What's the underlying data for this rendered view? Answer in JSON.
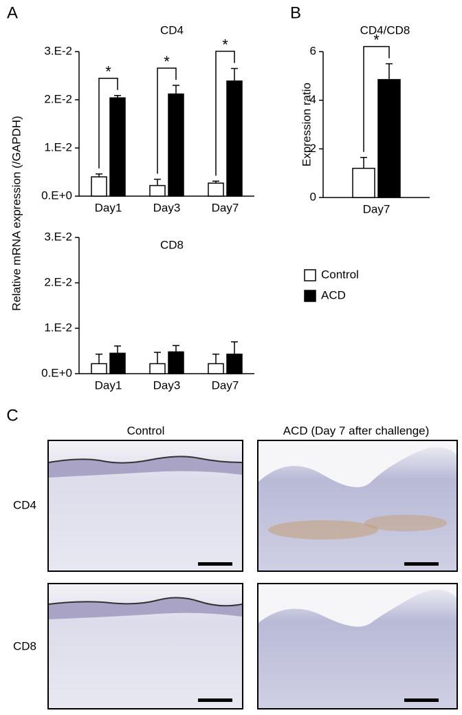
{
  "chart_data": [
    {
      "type": "bar",
      "panel": "A",
      "title": "CD4",
      "ylabel": "Relative mRNA expression  (/GAPDH)",
      "categories": [
        "Day1",
        "Day3",
        "Day7"
      ],
      "series": [
        {
          "name": "Control",
          "color": "#ffffff",
          "values": [
            0.004,
            0.0022,
            0.0027
          ],
          "errors": [
            0.0006,
            0.0013,
            0.0004
          ]
        },
        {
          "name": "ACD",
          "color": "#000000",
          "values": [
            0.0204,
            0.0212,
            0.0239
          ],
          "errors": [
            0.0005,
            0.0018,
            0.0026
          ]
        }
      ],
      "significance": [
        "*",
        "*",
        "*"
      ],
      "ylim": [
        0,
        0.03
      ],
      "yticks": [
        {
          "value": 0,
          "label": "0.E+0"
        },
        {
          "value": 0.01,
          "label": "1.E-2"
        },
        {
          "value": 0.02,
          "label": "2.E-2"
        },
        {
          "value": 0.03,
          "label": "3.E-2"
        }
      ]
    },
    {
      "type": "bar",
      "title": "CD8",
      "categories": [
        "Day1",
        "Day3",
        "Day7"
      ],
      "series": [
        {
          "color": "#ffffff",
          "values": [
            0.0022,
            0.0022,
            0.0022
          ],
          "errors": [
            0.0021,
            0.0025,
            0.0021
          ]
        },
        {
          "color": "#000000",
          "values": [
            0.0045,
            0.0048,
            0.0043
          ],
          "errors": [
            0.0016,
            0.0014,
            0.0027
          ]
        }
      ],
      "ylim": [
        0,
        0.03
      ],
      "yticks": [
        {
          "value": 0,
          "label": "0.E+0"
        },
        {
          "value": 0.01,
          "label": "1.E-2"
        },
        {
          "value": 0.02,
          "label": "2.E-2"
        },
        {
          "value": 0.03,
          "label": "3.E-2"
        }
      ]
    },
    {
      "type": "bar",
      "panel": "B",
      "title": "CD4/CD8",
      "ylabel": "Expression ratio",
      "categories": [
        "Day7"
      ],
      "series": [
        {
          "color": "#ffffff",
          "values": [
            1.2
          ],
          "errors": [
            0.45
          ]
        },
        {
          "color": "#000000",
          "values": [
            4.85
          ],
          "errors": [
            0.65
          ]
        }
      ],
      "significance": [
        "*"
      ],
      "ylim": [
        0,
        6
      ],
      "yticks": [
        0,
        2,
        4,
        6
      ]
    }
  ],
  "panel_c": {
    "label": "C",
    "columns": [
      "Control",
      "ACD (Day 7 after challenge)"
    ],
    "rows": [
      "CD4",
      "CD8"
    ]
  }
}
